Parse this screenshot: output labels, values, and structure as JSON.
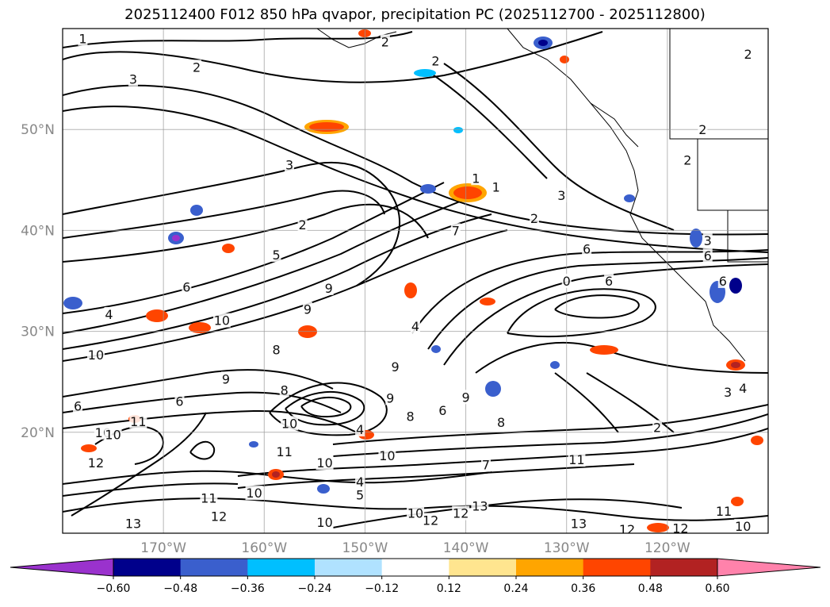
{
  "title": "2025112400 F012 850 hPa qvapor, precipitation PC (2025112700 - 2025112800)",
  "map": {
    "lon_range": [
      -180,
      -110
    ],
    "lat_range": [
      10,
      60
    ],
    "lat_ticks": [
      {
        "value": 50,
        "label": "50°N"
      },
      {
        "value": 40,
        "label": "40°N"
      },
      {
        "value": 30,
        "label": "30°N"
      },
      {
        "value": 20,
        "label": "20°N"
      }
    ],
    "lon_ticks": [
      {
        "value": -170,
        "label": "170°W"
      },
      {
        "value": -160,
        "label": "160°W"
      },
      {
        "value": -150,
        "label": "150°W"
      },
      {
        "value": -140,
        "label": "140°W"
      },
      {
        "value": -130,
        "label": "130°W"
      },
      {
        "value": -120,
        "label": "120°W"
      }
    ],
    "grid": true,
    "contour_labels": [
      {
        "text": "1",
        "lon": -178.0,
        "lat": 59.0
      },
      {
        "text": "3",
        "lon": -173.0,
        "lat": 55.0
      },
      {
        "text": "2",
        "lon": -166.7,
        "lat": 56.2
      },
      {
        "text": "2",
        "lon": -148.0,
        "lat": 58.7
      },
      {
        "text": "2",
        "lon": -143.0,
        "lat": 56.8
      },
      {
        "text": "2",
        "lon": -112.0,
        "lat": 57.5
      },
      {
        "text": "3",
        "lon": -157.5,
        "lat": 46.5
      },
      {
        "text": "1",
        "lon": -139.0,
        "lat": 45.2
      },
      {
        "text": "1",
        "lon": -137.0,
        "lat": 44.3
      },
      {
        "text": "3",
        "lon": -130.5,
        "lat": 43.5
      },
      {
        "text": "2",
        "lon": -133.2,
        "lat": 41.2
      },
      {
        "text": "2",
        "lon": -118.0,
        "lat": 47.0
      },
      {
        "text": "2",
        "lon": -156.2,
        "lat": 40.6
      },
      {
        "text": "5",
        "lon": -158.8,
        "lat": 37.6
      },
      {
        "text": "6",
        "lon": -167.7,
        "lat": 34.4
      },
      {
        "text": "9",
        "lon": -153.6,
        "lat": 34.3
      },
      {
        "text": "9",
        "lon": -155.7,
        "lat": 32.2
      },
      {
        "text": "10",
        "lon": -164.2,
        "lat": 31.1
      },
      {
        "text": "4",
        "lon": -175.4,
        "lat": 31.7
      },
      {
        "text": "10",
        "lon": -176.7,
        "lat": 27.7
      },
      {
        "text": "8",
        "lon": -158.8,
        "lat": 28.2
      },
      {
        "text": "9",
        "lon": -163.8,
        "lat": 25.3
      },
      {
        "text": "6",
        "lon": -168.4,
        "lat": 23.1
      },
      {
        "text": "6",
        "lon": -178.5,
        "lat": 22.6
      },
      {
        "text": "10",
        "lon": -176.0,
        "lat": 20.0
      },
      {
        "text": "11",
        "lon": -172.5,
        "lat": 21.1
      },
      {
        "text": "10",
        "lon": -175.0,
        "lat": 19.8
      },
      {
        "text": "12",
        "lon": -176.7,
        "lat": 17.0
      },
      {
        "text": "8",
        "lon": -158.0,
        "lat": 24.2
      },
      {
        "text": "10",
        "lon": -157.5,
        "lat": 20.9
      },
      {
        "text": "4",
        "lon": -150.5,
        "lat": 20.3
      },
      {
        "text": "9",
        "lon": -147.5,
        "lat": 23.4
      },
      {
        "text": "8",
        "lon": -145.5,
        "lat": 21.6
      },
      {
        "text": "6",
        "lon": -142.3,
        "lat": 22.2
      },
      {
        "text": "10",
        "lon": -147.8,
        "lat": 17.7
      },
      {
        "text": "10",
        "lon": -154.0,
        "lat": 17.0
      },
      {
        "text": "11",
        "lon": -158.0,
        "lat": 18.1
      },
      {
        "text": "4",
        "lon": -150.5,
        "lat": 15.1
      },
      {
        "text": "5",
        "lon": -150.5,
        "lat": 13.8
      },
      {
        "text": "9",
        "lon": -140.0,
        "lat": 23.5
      },
      {
        "text": "8",
        "lon": -136.5,
        "lat": 21.0
      },
      {
        "text": "7",
        "lon": -138.0,
        "lat": 16.8
      },
      {
        "text": "2",
        "lon": -121.0,
        "lat": 20.5
      },
      {
        "text": "3",
        "lon": -114.0,
        "lat": 24.0
      },
      {
        "text": "4",
        "lon": -112.5,
        "lat": 24.4
      },
      {
        "text": "11",
        "lon": -129.0,
        "lat": 17.3
      },
      {
        "text": "12",
        "lon": -140.5,
        "lat": 12.0
      },
      {
        "text": "13",
        "lon": -138.6,
        "lat": 12.7
      },
      {
        "text": "13",
        "lon": -128.8,
        "lat": 11.0
      },
      {
        "text": "12",
        "lon": -124.0,
        "lat": 10.4
      },
      {
        "text": "12",
        "lon": -118.7,
        "lat": 10.5
      },
      {
        "text": "11",
        "lon": -114.4,
        "lat": 12.2
      },
      {
        "text": "10",
        "lon": -112.5,
        "lat": 10.7
      },
      {
        "text": "12",
        "lon": -143.5,
        "lat": 11.3
      },
      {
        "text": "10",
        "lon": -145.0,
        "lat": 12.0
      },
      {
        "text": "10",
        "lon": -154.0,
        "lat": 11.1
      },
      {
        "text": "13",
        "lon": -173.0,
        "lat": 11.0
      },
      {
        "text": "12",
        "lon": -164.5,
        "lat": 11.7
      },
      {
        "text": "11",
        "lon": -165.5,
        "lat": 13.5
      },
      {
        "text": "10",
        "lon": -161.0,
        "lat": 14.0
      },
      {
        "text": "6",
        "lon": -128.0,
        "lat": 38.2
      },
      {
        "text": "0",
        "lon": -130.0,
        "lat": 35.0
      },
      {
        "text": "6",
        "lon": -125.8,
        "lat": 35.0
      },
      {
        "text": "6",
        "lon": -114.5,
        "lat": 35.0
      },
      {
        "text": "7",
        "lon": -141.0,
        "lat": 40.0
      },
      {
        "text": "4",
        "lon": -145.0,
        "lat": 30.5
      },
      {
        "text": "9",
        "lon": -147.0,
        "lat": 26.5
      },
      {
        "text": "6",
        "lon": -116.0,
        "lat": 37.5
      },
      {
        "text": "3",
        "lon": -116.0,
        "lat": 39.0
      },
      {
        "text": "2",
        "lon": -116.5,
        "lat": 50.0
      }
    ]
  },
  "colorbar": {
    "colors": [
      "#9a32cd",
      "#00008b",
      "#3a5fcd",
      "#00bfff",
      "#b0e2ff",
      "#ffffff",
      "#ffe58f",
      "#ffa500",
      "#ff4500",
      "#b22222",
      "#ff82ab"
    ],
    "under_color": "#9a32cd",
    "over_color": "#ff82ab",
    "tick_labels": [
      "−0.60",
      "−0.48",
      "−0.36",
      "−0.24",
      "−0.12",
      "0.12",
      "0.24",
      "0.36",
      "0.48",
      "0.60"
    ]
  }
}
